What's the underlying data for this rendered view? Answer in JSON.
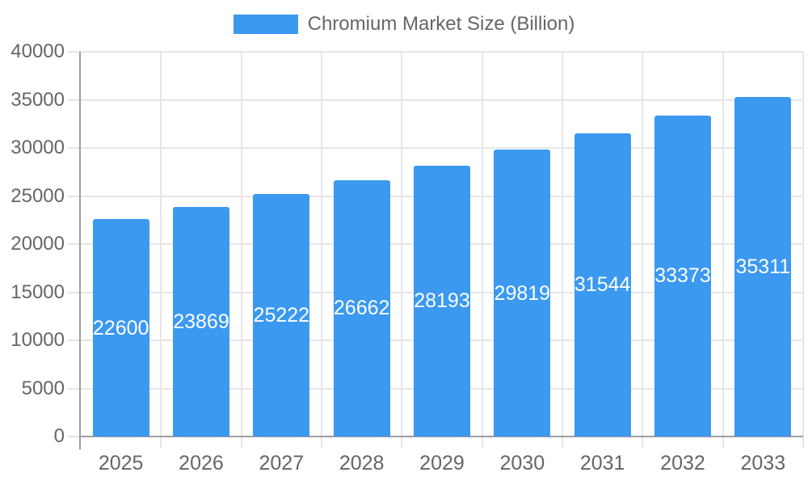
{
  "chart_data": {
    "type": "bar",
    "title": "",
    "legend_label": "Chromium Market Size (Billion)",
    "legend_position": "top",
    "categories": [
      "2025",
      "2026",
      "2027",
      "2028",
      "2029",
      "2030",
      "2031",
      "2032",
      "2033"
    ],
    "values": [
      22600,
      23869,
      25222,
      26662,
      28193,
      29819,
      31544,
      33373,
      35311
    ],
    "xlabel": "",
    "ylabel": "",
    "ylim": [
      0,
      40000
    ],
    "ytick_step": 5000,
    "grid": "on",
    "colors": {
      "bar": "#3B99F0",
      "bar_value_text": "#FFFFFF",
      "tick_text": "#666666",
      "gridline": "#E6E6E6",
      "axis_line": "#9E9E9E"
    }
  }
}
